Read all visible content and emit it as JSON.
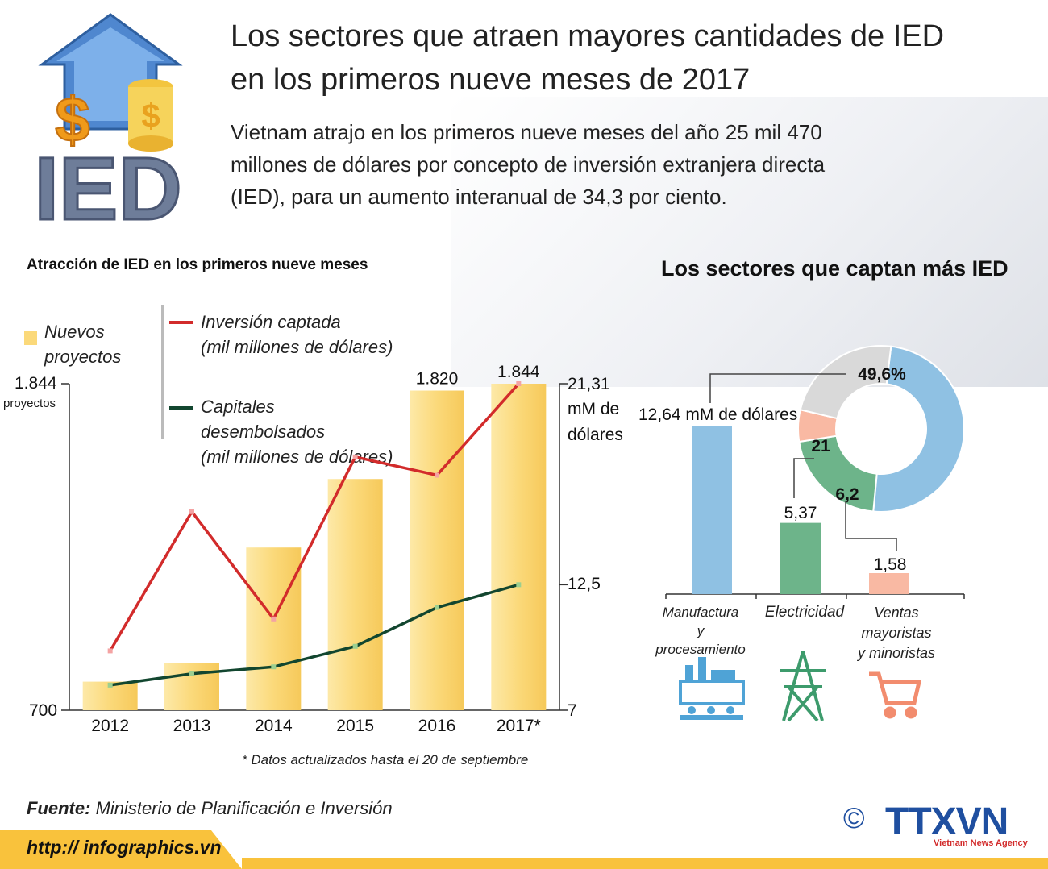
{
  "header": {
    "title_line1": "Los sectores que atraen mayores cantidades de IED",
    "title_line2": "en los primeros nueve meses de 2017",
    "lead_line1": "Vietnam atrajo en los primeros nueve meses del año 25 mil 470",
    "lead_line2": "millones de dólares por concepto de inversión extranjera directa",
    "lead_line3": "(IED), para un aumento interanual de 34,3 por ciento.",
    "logo_text": "IED",
    "logo_icons": [
      "up-arrow-icon",
      "dollar-sign-icon",
      "coin-stack-icon"
    ]
  },
  "chart_data": [
    {
      "type": "bar",
      "title": "Atracción de IED en los primeros nueve meses",
      "categories": [
        "2012",
        "2013",
        "2014",
        "2015",
        "2016",
        "2017*"
      ],
      "legend": {
        "bars_line1": "Nuevos",
        "bars_line2": "proyectos",
        "red_line1": "Inversión captada",
        "red_line2": "(mil millones de dólares)",
        "green_line1": "Capitales",
        "green_line2": "desembolsados",
        "green_line3": "(mil millones de dólares)"
      },
      "left_axis": {
        "min_label": "700",
        "max_label": "1.844",
        "unit": "proyectos",
        "ylim": [
          700,
          1844
        ]
      },
      "right_axis": {
        "min_label": "7",
        "mid_label": "12,5",
        "max_label": "21,31",
        "unit_line1": "mM de",
        "unit_line2": "dólares",
        "ylim": [
          7,
          21.31
        ]
      },
      "series": [
        {
          "name": "Nuevos proyectos",
          "kind": "bar",
          "color": "#fbd97a",
          "values": [
            800,
            865,
            1270,
            1510,
            1820,
            1844
          ],
          "labels": [
            "",
            "",
            "",
            "",
            "1.820",
            "1.844"
          ]
        },
        {
          "name": "Inversión captada",
          "kind": "line",
          "color": "#d22b2b",
          "values": [
            9.6,
            15.7,
            11.0,
            18.1,
            17.3,
            21.31
          ]
        },
        {
          "name": "Capitales desembolsados",
          "kind": "line",
          "color": "#12462f",
          "values": [
            8.1,
            8.6,
            8.9,
            9.8,
            11.5,
            12.5
          ]
        }
      ],
      "footnote": "* Datos actualizados hasta el 20 de septiembre"
    },
    {
      "type": "bar",
      "title": "Los sectores que captan más IED",
      "categories": [
        "Manufactura y procesamiento",
        "Electricidad",
        "Ventas mayoristas y minoristas"
      ],
      "category_lines": [
        [
          "Manufactura",
          "y",
          "procesamiento"
        ],
        [
          "Electricidad"
        ],
        [
          "Ventas",
          "mayoristas",
          "y minoristas"
        ]
      ],
      "values": [
        12.64,
        5.37,
        1.58
      ],
      "value_labels": [
        "12,64 mM de dólares",
        "5,37",
        "1,58"
      ],
      "colors": [
        "#8fc1e3",
        "#6db48a",
        "#f9b9a3"
      ],
      "icons": [
        "factory-icon",
        "power-tower-icon",
        "shopping-cart-icon"
      ]
    },
    {
      "type": "pie",
      "slices": [
        {
          "label": "49,6%",
          "value": 49.6,
          "color": "#8fc1e3"
        },
        {
          "label": "21",
          "value": 21.0,
          "color": "#6db48a"
        },
        {
          "label": "6,2",
          "value": 6.2,
          "color": "#f9b9a3"
        },
        {
          "label": "",
          "value": 23.2,
          "color": "#d9d9d9"
        }
      ]
    }
  ],
  "footer": {
    "source_label": "Fuente:",
    "source_text": "Ministerio de Planificación e Inversión",
    "url": "http:// infographics.vn",
    "copyright": "©",
    "brand": "TTXVN",
    "brand_sub": "Vietnam News Agency",
    "band_color": "#f9c23c"
  }
}
